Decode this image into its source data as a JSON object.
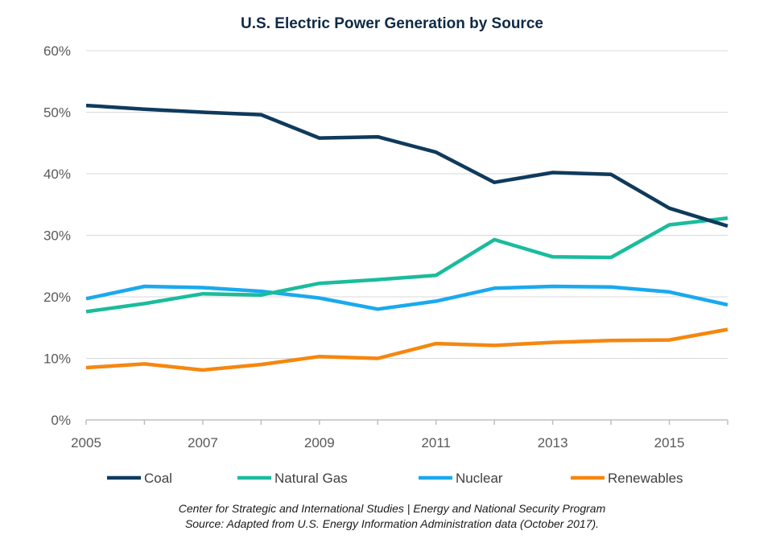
{
  "chart_data": {
    "type": "line",
    "title": "U.S. Electric Power Generation by Source",
    "xlabel": "",
    "ylabel": "",
    "x": [
      2005,
      2006,
      2007,
      2008,
      2009,
      2010,
      2011,
      2012,
      2013,
      2014,
      2015,
      2016
    ],
    "x_tick_labels": [
      "2005",
      "2007",
      "2009",
      "2011",
      "2013",
      "2015"
    ],
    "y_tick_labels": [
      "0%",
      "10%",
      "20%",
      "30%",
      "40%",
      "50%",
      "60%"
    ],
    "ylim": [
      0,
      60
    ],
    "grid": true,
    "legend_position": "bottom",
    "series": [
      {
        "name": "Coal",
        "color": "#0f3a5c",
        "values": [
          51.1,
          50.5,
          50.0,
          49.6,
          45.8,
          46.0,
          43.5,
          38.6,
          40.2,
          39.9,
          34.4,
          31.5
        ]
      },
      {
        "name": "Natural Gas",
        "color": "#1abc9c",
        "values": [
          17.6,
          18.9,
          20.5,
          20.3,
          22.2,
          22.8,
          23.5,
          29.3,
          26.5,
          26.4,
          31.7,
          32.8
        ]
      },
      {
        "name": "Nuclear",
        "color": "#1aa9ee",
        "values": [
          19.7,
          21.7,
          21.5,
          20.9,
          19.8,
          18.0,
          19.3,
          21.4,
          21.7,
          21.6,
          20.8,
          18.7
        ]
      },
      {
        "name": "Renewables",
        "color": "#f5870f",
        "values": [
          8.5,
          9.1,
          8.1,
          9.0,
          10.3,
          10.0,
          12.4,
          12.1,
          12.6,
          12.9,
          13.0,
          14.7
        ]
      }
    ]
  },
  "source": {
    "line1": "Center for Strategic and International Studies | Energy and National Security Program",
    "line2": "Source: Adapted from U.S. Energy Information Administration data (October 2017)."
  }
}
